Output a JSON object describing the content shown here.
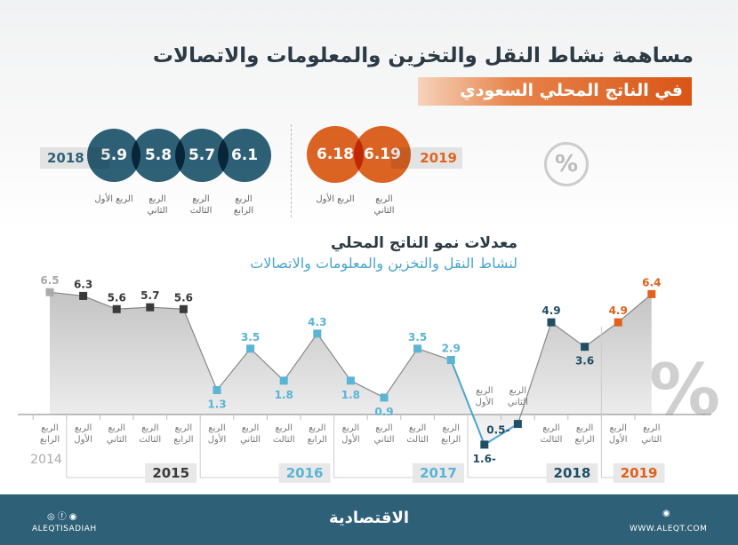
{
  "header": {
    "title": "مساهمة نشاط النقل والتخزين والمعلومات والاتصالات",
    "banner": "في الناتج المحلي السعودي"
  },
  "contribution": {
    "y2018": {
      "year": "2018",
      "values": [
        "5.9",
        "5.8",
        "5.7",
        "6.1"
      ],
      "labels": [
        "الربع الأول",
        "الربع الثاني",
        "الربع الثالث",
        "الربع الرابع"
      ],
      "color": "#2e6278"
    },
    "y2019": {
      "year": "2019",
      "values": [
        "6.18",
        "6.19"
      ],
      "labels": [
        "الربع الأول",
        "الربع الثاني"
      ],
      "color": "#e06523"
    },
    "icon": "percent-icon"
  },
  "chart_data": {
    "type": "line",
    "title": "معدلات نمو الناتج المحلي",
    "subtitle": "لنشاط النقل والتخزين والمعلومات والاتصالات",
    "unit": "%",
    "grid": false,
    "ylim": [
      -1.6,
      6.5
    ],
    "categories": [
      {
        "q": "الربع الرابع",
        "year": "2014"
      },
      {
        "q": "الربع الأول",
        "year": "2015"
      },
      {
        "q": "الربع الثاني",
        "year": "2015"
      },
      {
        "q": "الربع الثالث",
        "year": "2015"
      },
      {
        "q": "الربع الرابع",
        "year": "2015"
      },
      {
        "q": "الربع الأول",
        "year": "2016"
      },
      {
        "q": "الربع الثاني",
        "year": "2016"
      },
      {
        "q": "الربع الثالث",
        "year": "2016"
      },
      {
        "q": "الربع الرابع",
        "year": "2016"
      },
      {
        "q": "الربع الأول",
        "year": "2017"
      },
      {
        "q": "الربع الثاني",
        "year": "2017"
      },
      {
        "q": "الربع الثالث",
        "year": "2017"
      },
      {
        "q": "الربع الرابع",
        "year": "2017"
      },
      {
        "q": "الربع الأول",
        "year": "2018"
      },
      {
        "q": "الربع الثاني",
        "year": "2018"
      },
      {
        "q": "الربع الثالث",
        "year": "2018"
      },
      {
        "q": "الربع الرابع",
        "year": "2018"
      },
      {
        "q": "الربع الأول",
        "year": "2019"
      },
      {
        "q": "الربع الثاني",
        "year": "2019"
      }
    ],
    "values": [
      6.5,
      6.3,
      5.6,
      5.7,
      5.6,
      1.3,
      3.5,
      1.8,
      4.3,
      1.8,
      0.9,
      3.5,
      2.9,
      -1.6,
      -0.5,
      4.9,
      3.6,
      4.9,
      6.4
    ],
    "value_labels": [
      "6.5",
      "6.3",
      "5.6",
      "5.7",
      "5.6",
      "1.3",
      "3.5",
      "1.8",
      "4.3",
      "1.8",
      "0.9",
      "3.5",
      "2.9",
      "1.6-",
      "0.5-",
      "4.9",
      "3.6",
      "4.9",
      "6.4"
    ],
    "years": [
      "2014",
      "2015",
      "2016",
      "2017",
      "2018",
      "2019"
    ],
    "year_colors": {
      "2014": "#aaaaaa",
      "2015": "#3a3a3a",
      "2016": "#5ab4d6",
      "2017": "#5ab4d6",
      "2018": "#1f4e66",
      "2019": "#e0601c"
    }
  },
  "footer": {
    "handle": "ALEQTISADIAH",
    "logo": "الاقتصادية",
    "website": "WWW.ALEQT.COM",
    "social_icons": [
      "instagram-icon",
      "facebook-icon",
      "twitter-icon"
    ]
  }
}
